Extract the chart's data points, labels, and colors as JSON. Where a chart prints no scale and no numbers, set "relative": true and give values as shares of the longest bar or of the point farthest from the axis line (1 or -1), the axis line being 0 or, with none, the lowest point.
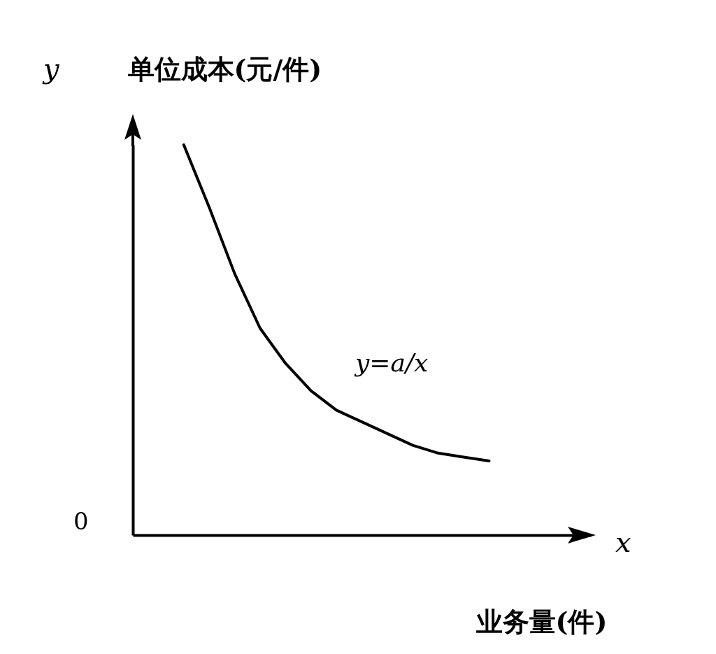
{
  "chart_data": {
    "type": "line",
    "relative": true,
    "xlabel": "业务量(件)",
    "ylabel": "单位成本(元/件)",
    "categories": [
      null,
      null,
      null,
      null,
      null,
      null,
      null,
      null,
      null,
      null,
      null,
      null,
      null,
      null,
      null,
      null,
      null,
      null,
      null
    ],
    "series": [
      {
        "color": "#000000",
        "values": [
          null,
          null,
          1,
          0.84,
          0.67,
          0.53,
          0.44,
          0.37,
          0.32,
          0.29,
          0.26,
          0.23,
          0.21,
          0.2,
          0.19,
          null,
          null,
          null,
          null
        ]
      }
    ],
    "annotations": [
      "y",
      "x",
      "0",
      "y=a/x"
    ],
    "grid": false,
    "marker": "none",
    "line_style": "solid"
  }
}
